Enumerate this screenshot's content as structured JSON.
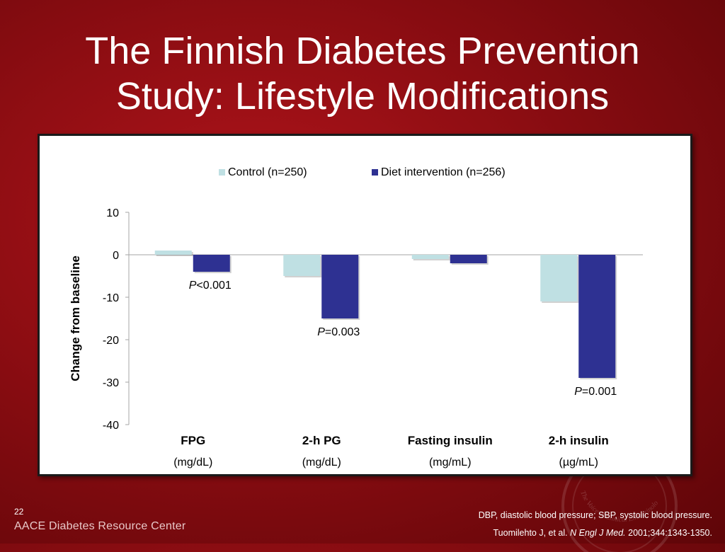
{
  "slide": {
    "title_line1": "The Finnish Diabetes Prevention",
    "title_line2": "Study: Lifestyle Modifications",
    "number": "22",
    "logo_text": "AACE Diabetes Resource Center",
    "footnote": "DBP, diastolic blood pressure; SBP, systolic blood pressure.",
    "citation_authors": "Tuomilehto J, et al.",
    "citation_journal": "N Engl J Med.",
    "citation_rest": "2001;344:1343-1350.",
    "seal_text": "The Voice of Clinical Endocrinology"
  },
  "colors": {
    "control": "#bfe0e3",
    "diet": "#2e3192",
    "background": "#8c0d12"
  },
  "chart_data": {
    "type": "bar",
    "ylabel": "Change from baseline",
    "ylim": [
      -40,
      10
    ],
    "yticks": [
      10,
      0,
      -10,
      -20,
      -30,
      -40
    ],
    "categories": [
      {
        "name": "FPG",
        "unit": "(mg/dL)"
      },
      {
        "name": "2-h PG",
        "unit": "(mg/dL)"
      },
      {
        "name": "Fasting insulin",
        "unit": "(mg/mL)"
      },
      {
        "name": "2-h insulin",
        "unit": "(µg/mL)"
      }
    ],
    "series": [
      {
        "name": "Control (n=250)",
        "values": [
          1,
          -5,
          -1,
          -11
        ]
      },
      {
        "name": "Diet intervention (n=256)",
        "values": [
          -4,
          -15,
          -2,
          -29
        ]
      }
    ],
    "annotations": [
      {
        "category": 0,
        "p": "P",
        "text": "<0.001"
      },
      {
        "category": 1,
        "p": "P",
        "text": "=0.003"
      },
      {
        "category": 2,
        "p": "",
        "text": ""
      },
      {
        "category": 3,
        "p": "P",
        "text": "=0.001"
      }
    ],
    "legend_position": "top"
  }
}
